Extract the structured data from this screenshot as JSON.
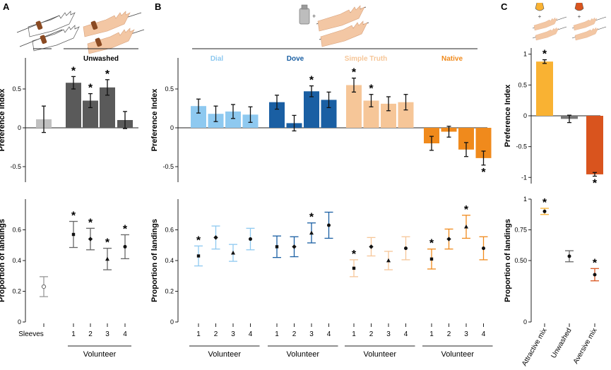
{
  "panel_labels": [
    "A",
    "B",
    "C"
  ],
  "colors": {
    "a_sleeves": "#c0c0c0",
    "a_unwashed": "#5a5a5a",
    "dial": "#8ec9f0",
    "dove": "#1a5fa3",
    "simple_truth": "#f6c698",
    "native": "#f08a1c",
    "attractive": "#f9b233",
    "unwashed_c": "#777777",
    "aversive": "#d9541e"
  },
  "headers": {
    "unwashed": "Unwashed",
    "dial": "Dial",
    "dove": "Dove",
    "simple_truth": "Simple Truth",
    "native": "Native"
  },
  "axes": {
    "pref_label": "Preference Index",
    "prop_label": "Proportion of landings",
    "volunteer": "Volunteer"
  },
  "star": "*",
  "chart_data": [
    {
      "panel": "A",
      "type": "bar",
      "ylabel": "Preference Index",
      "ylim": [
        -0.7,
        0.9
      ],
      "yticks": [
        "-0.5",
        "0",
        "0.5"
      ],
      "categories": [
        "Sleeves",
        "1",
        "2",
        "3",
        "4"
      ],
      "values": [
        0.11,
        0.58,
        0.35,
        0.52,
        0.1
      ],
      "errors": [
        0.17,
        0.08,
        0.09,
        0.1,
        0.11
      ],
      "significant": [
        false,
        true,
        true,
        true,
        false
      ],
      "xlabel": "Volunteer"
    },
    {
      "panel": "A",
      "type": "scatter",
      "ylabel": "Proportion of landings",
      "ylim": [
        0,
        0.8
      ],
      "yticks": [
        "0",
        "0.2",
        "0.4",
        "0.6"
      ],
      "categories": [
        "Sleeves",
        "1",
        "2",
        "3",
        "4"
      ],
      "values": [
        0.23,
        0.57,
        0.54,
        0.41,
        0.49
      ],
      "errors": [
        0.065,
        0.085,
        0.07,
        0.07,
        0.078
      ],
      "significant": [
        false,
        true,
        true,
        true,
        true
      ],
      "xlabel": "Volunteer"
    },
    {
      "panel": "B",
      "type": "bar",
      "ylabel": "Preference Index",
      "ylim": [
        -0.7,
        0.9
      ],
      "yticks": [
        "-0.5",
        "0",
        "0.5"
      ],
      "groups": [
        "Dial",
        "Dove",
        "Simple Truth",
        "Native"
      ],
      "categories": [
        "1",
        "2",
        "3",
        "4"
      ],
      "series": [
        {
          "name": "Dial",
          "values": [
            0.28,
            0.18,
            0.21,
            0.17
          ],
          "errors": [
            0.09,
            0.1,
            0.09,
            0.1
          ],
          "significant": [
            false,
            false,
            false,
            false
          ]
        },
        {
          "name": "Dove",
          "values": [
            0.33,
            0.06,
            0.47,
            0.36
          ],
          "errors": [
            0.09,
            0.1,
            0.07,
            0.1
          ],
          "significant": [
            false,
            false,
            true,
            false
          ]
        },
        {
          "name": "Simple Truth",
          "values": [
            0.55,
            0.35,
            0.31,
            0.33
          ],
          "errors": [
            0.09,
            0.08,
            0.09,
            0.1
          ],
          "significant": [
            true,
            true,
            false,
            false
          ]
        },
        {
          "name": "Native",
          "values": [
            -0.2,
            -0.05,
            -0.28,
            -0.39
          ],
          "errors": [
            0.09,
            0.07,
            0.09,
            0.09
          ],
          "significant": [
            false,
            false,
            false,
            true
          ]
        }
      ],
      "xlabel": "Volunteer"
    },
    {
      "panel": "B",
      "type": "scatter",
      "ylabel": "Proportion of landings",
      "ylim": [
        0,
        0.8
      ],
      "yticks": [
        "0",
        "0.2",
        "0.4",
        "0.6"
      ],
      "groups": [
        "Dial",
        "Dove",
        "Simple Truth",
        "Native"
      ],
      "categories": [
        "1",
        "2",
        "3",
        "4"
      ],
      "series": [
        {
          "name": "Dial",
          "values": [
            0.43,
            0.55,
            0.45,
            0.54
          ],
          "errors": [
            0.065,
            0.075,
            0.055,
            0.07
          ],
          "significant": [
            true,
            false,
            false,
            false
          ]
        },
        {
          "name": "Dove",
          "values": [
            0.49,
            0.49,
            0.58,
            0.63
          ],
          "errors": [
            0.07,
            0.065,
            0.065,
            0.085
          ],
          "significant": [
            false,
            false,
            true,
            false
          ]
        },
        {
          "name": "Simple Truth",
          "values": [
            0.35,
            0.49,
            0.4,
            0.48
          ],
          "errors": [
            0.055,
            0.06,
            0.06,
            0.075
          ],
          "significant": [
            true,
            false,
            false,
            false
          ]
        },
        {
          "name": "Native",
          "values": [
            0.41,
            0.54,
            0.62,
            0.48
          ],
          "errors": [
            0.065,
            0.065,
            0.075,
            0.075
          ],
          "significant": [
            true,
            false,
            true,
            false
          ]
        }
      ],
      "xlabel": "Volunteer"
    },
    {
      "panel": "C",
      "type": "bar",
      "ylabel": "Preference Index",
      "ylim": [
        -1.1,
        1.1
      ],
      "yticks": [
        "-1",
        "-0.5",
        "0",
        "0.5",
        "1"
      ],
      "categories": [
        "Attractive mix",
        "Unwashed",
        "Aversive mix"
      ],
      "values": [
        0.88,
        -0.05,
        -0.95
      ],
      "errors": [
        0.03,
        0.06,
        0.03
      ],
      "significant": [
        true,
        false,
        true
      ]
    },
    {
      "panel": "C",
      "type": "scatter",
      "ylabel": "Proportion of landings",
      "ylim": [
        0,
        1
      ],
      "yticks": [
        "0",
        "0.50",
        "0.75",
        "1"
      ],
      "categories": [
        "Attractive mix",
        "Unwashed",
        "Aversive mix"
      ],
      "values": [
        0.9,
        0.535,
        0.385
      ],
      "errors": [
        0.025,
        0.045,
        0.05
      ],
      "significant": [
        true,
        false,
        true
      ]
    }
  ]
}
